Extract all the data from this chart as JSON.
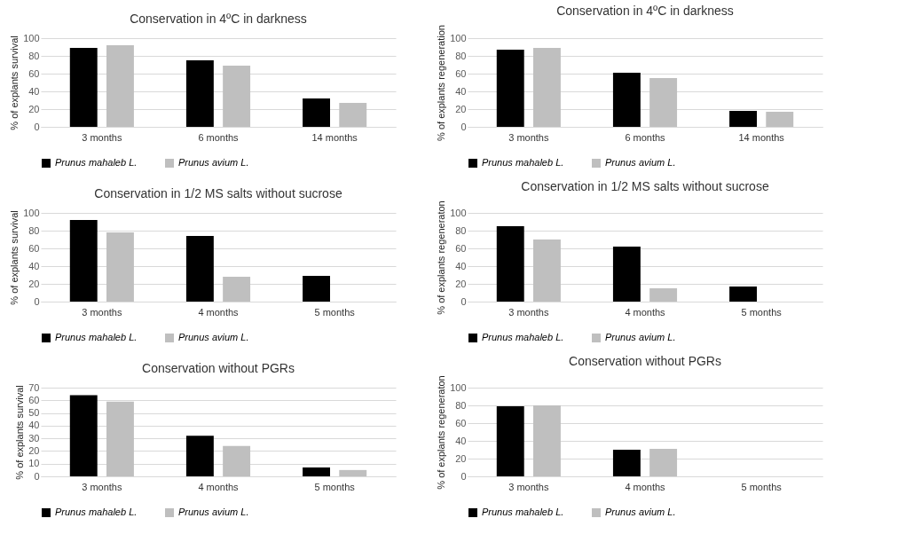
{
  "chart_data": [
    {
      "type": "bar",
      "title": "Conservation in 4ºC in darkness",
      "ylabel": "% of explants survival",
      "categories": [
        "3 months",
        "6 months",
        "14 months"
      ],
      "series": [
        {
          "name": "Prunus mahaleb L.",
          "color": "#000000",
          "values": [
            89,
            75,
            32
          ]
        },
        {
          "name": "Prunus avium L.",
          "color": "#bfbfbf",
          "values": [
            92,
            69,
            27
          ]
        }
      ],
      "ylim": [
        0,
        100
      ],
      "yticks": [
        0,
        20,
        40,
        60,
        80,
        100
      ],
      "grid": "y",
      "legend": "bottom"
    },
    {
      "type": "bar",
      "title": "Conservation in 4ºC in darkness",
      "ylabel": "% of explants regeneration",
      "categories": [
        "3 months",
        "6 months",
        "14 months"
      ],
      "series": [
        {
          "name": "Prunus mahaleb L.",
          "color": "#000000",
          "values": [
            87,
            61,
            18
          ]
        },
        {
          "name": "Prunus avium L.",
          "color": "#bfbfbf",
          "values": [
            89,
            55,
            17
          ]
        }
      ],
      "ylim": [
        0,
        100
      ],
      "yticks": [
        0,
        20,
        40,
        60,
        80,
        100
      ],
      "grid": "y",
      "legend": "bottom"
    },
    {
      "type": "bar",
      "title": "Conservation in 1/2 MS salts without sucrose",
      "ylabel": "% of explants survival",
      "categories": [
        "3 months",
        "4 months",
        "5 months"
      ],
      "series": [
        {
          "name": "Prunus mahaleb L.",
          "color": "#000000",
          "values": [
            92,
            74,
            29
          ]
        },
        {
          "name": "Prunus avium L.",
          "color": "#bfbfbf",
          "values": [
            78,
            28,
            0
          ]
        }
      ],
      "ylim": [
        0,
        100
      ],
      "yticks": [
        0,
        20,
        40,
        60,
        80,
        100
      ],
      "grid": "y",
      "legend": "bottom"
    },
    {
      "type": "bar",
      "title": "Conservation in 1/2 MS salts without sucrose",
      "ylabel": "% of explants regeneraton",
      "categories": [
        "3 months",
        "4 months",
        "5 months"
      ],
      "series": [
        {
          "name": "Prunus mahaleb L.",
          "color": "#000000",
          "values": [
            85,
            62,
            17
          ]
        },
        {
          "name": "Prunus avium L.",
          "color": "#bfbfbf",
          "values": [
            70,
            15,
            0
          ]
        }
      ],
      "ylim": [
        0,
        100
      ],
      "yticks": [
        0,
        20,
        40,
        60,
        80,
        100
      ],
      "grid": "y",
      "legend": "bottom"
    },
    {
      "type": "bar",
      "title": "Conservation without PGRs",
      "ylabel": "% of explants survival",
      "categories": [
        "3 months",
        "4 months",
        "5 months"
      ],
      "series": [
        {
          "name": "Prunus mahaleb L.",
          "color": "#000000",
          "values": [
            64,
            32,
            7
          ]
        },
        {
          "name": "Prunus avium L.",
          "color": "#bfbfbf",
          "values": [
            59,
            24,
            5
          ]
        }
      ],
      "ylim": [
        0,
        70
      ],
      "yticks": [
        0,
        10,
        20,
        30,
        40,
        50,
        60,
        70
      ],
      "grid": "y",
      "legend": "bottom"
    },
    {
      "type": "bar",
      "title": "Conservation without PGRs",
      "ylabel": "% of explants regeneraton",
      "categories": [
        "3 months",
        "4 months",
        "5 months"
      ],
      "series": [
        {
          "name": "Prunus mahaleb L.",
          "color": "#000000",
          "values": [
            79,
            30,
            0
          ]
        },
        {
          "name": "Prunus avium L.",
          "color": "#bfbfbf",
          "values": [
            80,
            31,
            0
          ]
        }
      ],
      "ylim": [
        0,
        100
      ],
      "yticks": [
        0,
        20,
        40,
        60,
        80,
        100
      ],
      "grid": "y",
      "legend": "bottom"
    }
  ]
}
